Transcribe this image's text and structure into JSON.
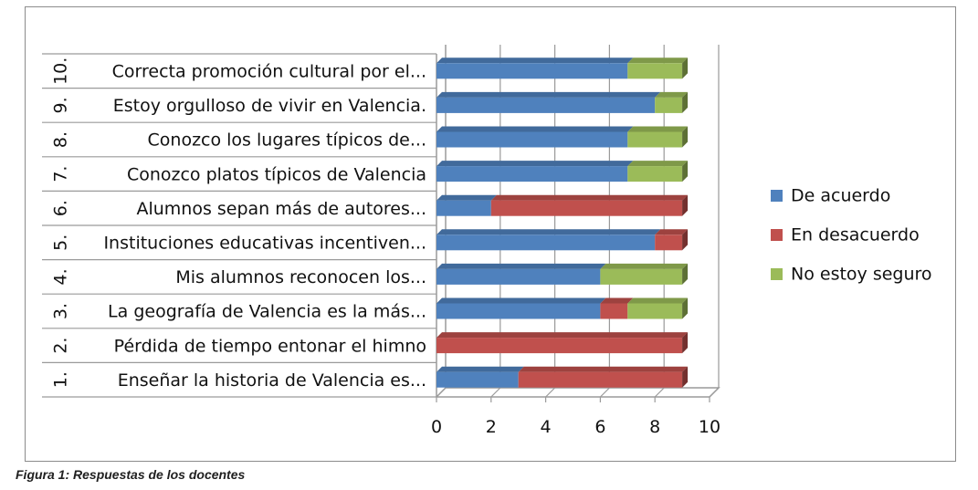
{
  "figure": {
    "caption": "Figura 1: Respuestas de los docentes"
  },
  "chart_data": {
    "type": "bar",
    "orientation": "horizontal",
    "stacked": true,
    "three_d": true,
    "categories": [
      {
        "num": "1.",
        "label": "Enseñar la historia de Valencia es..."
      },
      {
        "num": "2.",
        "label": "Pérdida de tiempo entonar el himno"
      },
      {
        "num": "3.",
        "label": "La geografía de Valencia es la más..."
      },
      {
        "num": "4.",
        "label": "Mis alumnos reconocen los..."
      },
      {
        "num": "5.",
        "label": "Instituciones educativas incentiven..."
      },
      {
        "num": "6.",
        "label": "Alumnos sepan más de autores..."
      },
      {
        "num": "7.",
        "label": "Conozco platos típicos de Valencia"
      },
      {
        "num": "8.",
        "label": "Conozco los lugares típicos de..."
      },
      {
        "num": "9.",
        "label": "Estoy orgulloso de vivir en Valencia."
      },
      {
        "num": "10.",
        "label": "Correcta promoción cultural por el..."
      }
    ],
    "series": [
      {
        "name": "De acuerdo",
        "color": "#4f81bd",
        "values": [
          3,
          0,
          6,
          6,
          8,
          2,
          7,
          7,
          8,
          7
        ]
      },
      {
        "name": "En desacuerdo",
        "color": "#c0504d",
        "values": [
          6,
          9,
          1,
          0,
          1,
          7,
          0,
          0,
          0,
          0
        ]
      },
      {
        "name": "No estoy seguro",
        "color": "#9bbb59",
        "values": [
          0,
          0,
          2,
          3,
          0,
          0,
          2,
          2,
          1,
          2
        ]
      }
    ],
    "xlim": [
      0,
      10
    ],
    "x_ticks": [
      "0",
      "2",
      "4",
      "6",
      "8",
      "10"
    ],
    "grid": true,
    "legend_position": "right"
  }
}
